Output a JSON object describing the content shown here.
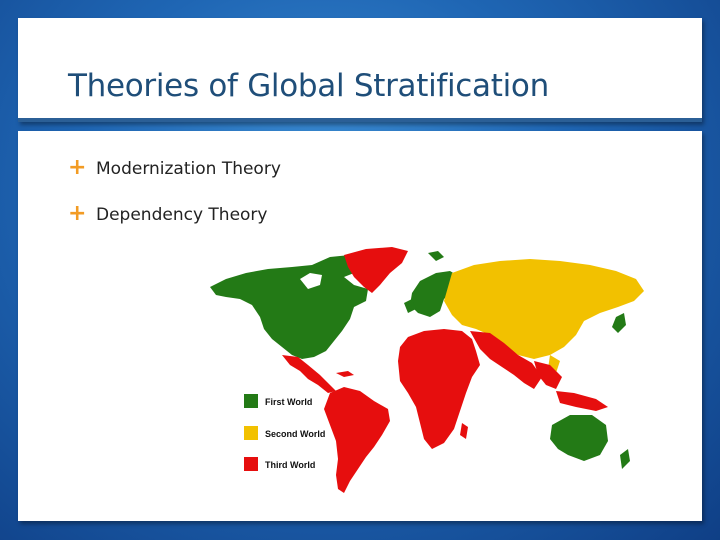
{
  "slide": {
    "title": "Theories of Global Stratification",
    "bullets": [
      {
        "label": "Modernization Theory"
      },
      {
        "label": "Dependency Theory"
      }
    ]
  },
  "map": {
    "legend": [
      {
        "label": "First World",
        "color": "#237a16"
      },
      {
        "label": "Second World",
        "color": "#f2c100"
      },
      {
        "label": "Third World",
        "color": "#e60e0e"
      }
    ]
  },
  "colors": {
    "title": "#1f4e79",
    "bullet_marker": "#f29b24",
    "background": "#1f66b4"
  }
}
